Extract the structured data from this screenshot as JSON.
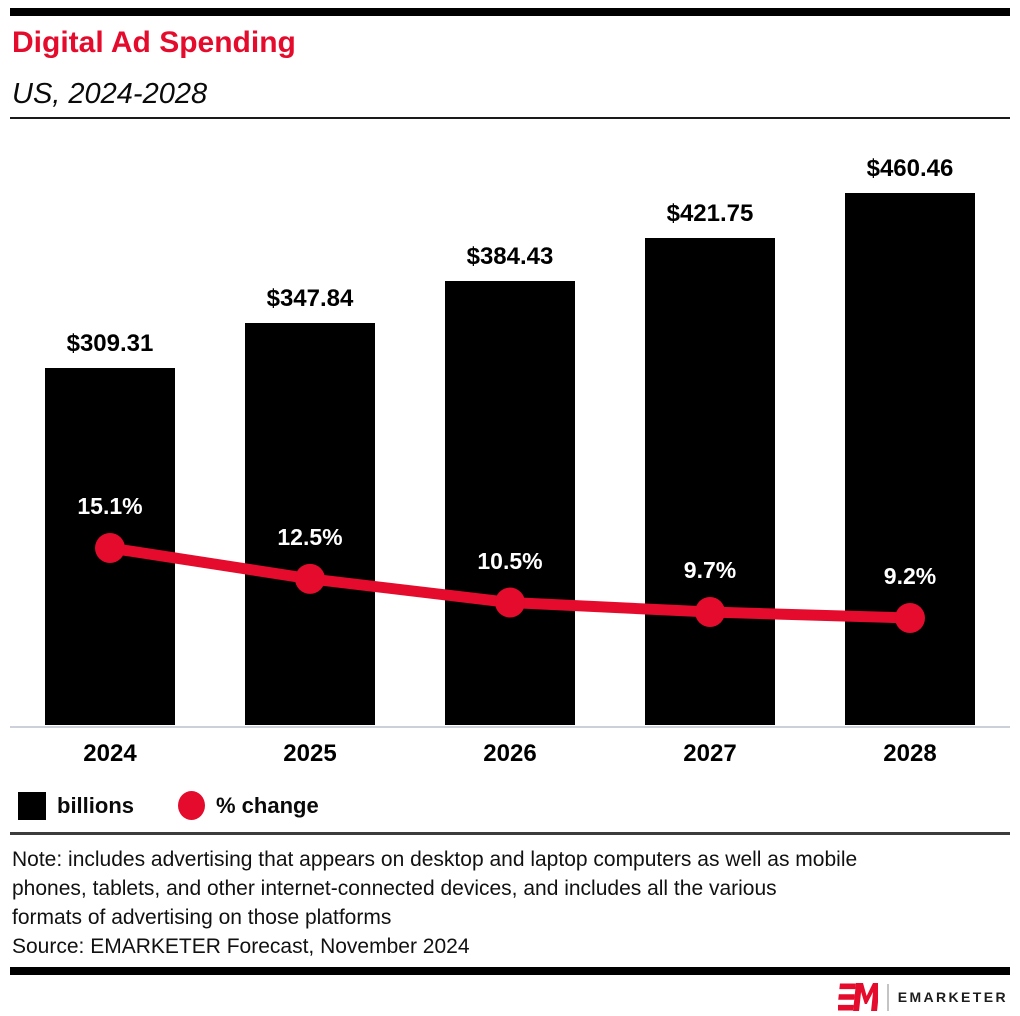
{
  "header": {
    "title": "Digital Ad Spending",
    "subtitle": "US, 2024-2028"
  },
  "colors": {
    "brand_red": "#e40b2c",
    "bar_black": "#000000",
    "axis_gray": "#ccd1d9"
  },
  "chart_data": {
    "type": "bar",
    "subtype": "bar+line-combo",
    "title": "Digital Ad Spending",
    "subtitle": "US, 2024-2028",
    "categories": [
      "2024",
      "2025",
      "2026",
      "2027",
      "2028"
    ],
    "series": [
      {
        "name": "billions",
        "type": "bar",
        "values": [
          309.31,
          347.84,
          384.43,
          421.75,
          460.46
        ],
        "labels": [
          "$309.31",
          "$347.84",
          "$384.43",
          "$421.75",
          "$460.46"
        ],
        "color": "#000000"
      },
      {
        "name": "% change",
        "type": "line",
        "values": [
          15.1,
          12.5,
          10.5,
          9.7,
          9.2
        ],
        "labels": [
          "15.1%",
          "12.5%",
          "10.5%",
          "9.7%",
          "9.2%"
        ],
        "color": "#e40b2c"
      }
    ],
    "ylabel": "",
    "xlabel": "",
    "grid": false,
    "legend_position": "bottom-left"
  },
  "legend": {
    "items": [
      {
        "label": "billions",
        "marker": "square",
        "color": "#000000"
      },
      {
        "label": "% change",
        "marker": "circle",
        "color": "#e40b2c"
      }
    ]
  },
  "notes": {
    "lines": [
      "Note: includes advertising that appears on desktop and laptop computers as well as mobile",
      "phones, tablets, and other internet-connected devices, and includes all the various",
      "formats of advertising on those platforms"
    ],
    "source": "Source: EMARKETER Forecast, November 2024"
  },
  "footer": {
    "logo_word": "EMARKETER"
  }
}
